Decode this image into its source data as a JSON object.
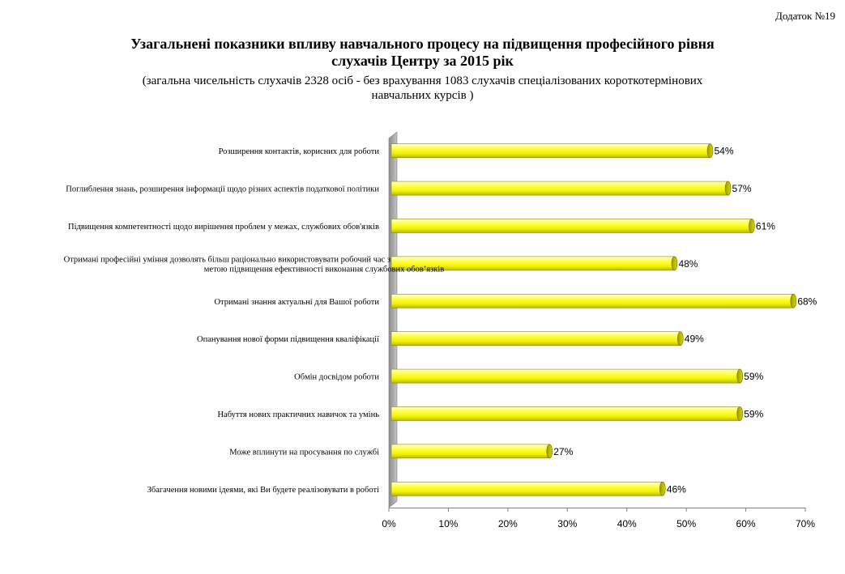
{
  "appendix": "Додаток №19",
  "title": {
    "line1": "Узагальнені показники впливу навчального процесу на підвищення професійного рівня",
    "line2": "слухачів Центру за 2015 рік"
  },
  "subtitle": {
    "line1": "(загальна чисельність слухачів 2328 осіб - без врахування  1083 слухачів спеціалізованих короткотермінових",
    "line2": "навчальних курсів )"
  },
  "chart_data": {
    "type": "bar",
    "orientation": "horizontal",
    "categories": [
      [
        "Розширення контактів, корисних для роботи"
      ],
      [
        "Поглиблення знань, розширення інформації щодо різних аспектів  податкової політики"
      ],
      [
        "Підвищення компетентності  щодо вирішення  проблем у межах, службових обов'язків"
      ],
      [
        "Отримані професійні  уміння дозволять більш раціонально використовувати робочий час з",
        "метою підвищення  ефективності  виконання  службових обов’язків"
      ],
      [
        "Отримані знання  актуальні для Вашої роботи"
      ],
      [
        "Опанування нової форми підвищення  кваліфікації"
      ],
      [
        "Обмін досвідом роботи"
      ],
      [
        "Набуття нових практичних  навичок та умінь"
      ],
      [
        "Може вплинути  на просування  по службі"
      ],
      [
        "Збагачення новими ідеями, які Ви будете реалізовувати в роботі"
      ]
    ],
    "values": [
      54,
      57,
      61,
      48,
      68,
      49,
      59,
      59,
      27,
      46
    ],
    "data_labels": [
      "54%",
      "57%",
      "61%",
      "48%",
      "68%",
      "49%",
      "59%",
      "59%",
      "27%",
      "46%"
    ],
    "xlim": [
      0,
      70
    ],
    "ticks": [
      0,
      10,
      20,
      30,
      40,
      50,
      60,
      70
    ],
    "tick_labels": [
      "0%",
      "10%",
      "20%",
      "30%",
      "40%",
      "50%",
      "60%",
      "70%"
    ],
    "grid": false,
    "bar_color": "#ffff00",
    "bar_outline": "#8a8a00",
    "wall_color": "#a6a6a6"
  }
}
